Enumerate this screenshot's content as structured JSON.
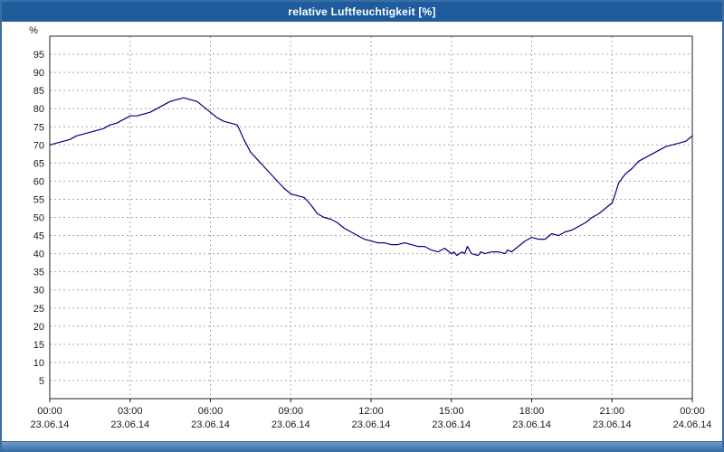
{
  "window": {
    "title": "relative Luftfeuchtigkeit [%]"
  },
  "colors": {
    "titlebar": "#1e5c9e",
    "window_border": "#3a6ea5",
    "plot_border": "#202020",
    "grid": "#a8a8a8",
    "line": "#000080",
    "label_text": "#1a1a1a"
  },
  "chart_data": {
    "type": "line",
    "title": "relative Luftfeuchtigkeit [%]",
    "xlabel": "",
    "ylabel": "%",
    "ylim": [
      0,
      100
    ],
    "xlim_hours": [
      0,
      24
    ],
    "grid": true,
    "legend_position": "none",
    "y_ticks": [
      5,
      10,
      15,
      20,
      25,
      30,
      35,
      40,
      45,
      50,
      55,
      60,
      65,
      70,
      75,
      80,
      85,
      90,
      95
    ],
    "x_ticks": [
      {
        "hour": 0,
        "time": "00:00",
        "date": "23.06.14"
      },
      {
        "hour": 3,
        "time": "03:00",
        "date": "23.06.14"
      },
      {
        "hour": 6,
        "time": "06:00",
        "date": "23.06.14"
      },
      {
        "hour": 9,
        "time": "09:00",
        "date": "23.06.14"
      },
      {
        "hour": 12,
        "time": "12:00",
        "date": "23.06.14"
      },
      {
        "hour": 15,
        "time": "15:00",
        "date": "23.06.14"
      },
      {
        "hour": 18,
        "time": "18:00",
        "date": "23.06.14"
      },
      {
        "hour": 21,
        "time": "21:00",
        "date": "23.06.14"
      },
      {
        "hour": 24,
        "time": "00:00",
        "date": "24.06.14"
      }
    ],
    "series": [
      {
        "name": "relative Luftfeuchtigkeit [%]",
        "x_hours": [
          0,
          0.25,
          0.5,
          0.75,
          1,
          1.25,
          1.5,
          1.75,
          2,
          2.25,
          2.5,
          2.75,
          3,
          3.25,
          3.5,
          3.75,
          4,
          4.25,
          4.5,
          4.75,
          5,
          5.25,
          5.5,
          5.75,
          6,
          6.25,
          6.5,
          6.75,
          7,
          7.1,
          7.25,
          7.5,
          7.75,
          8,
          8.25,
          8.5,
          8.75,
          9,
          9.25,
          9.5,
          9.75,
          10,
          10.25,
          10.5,
          10.75,
          11,
          11.25,
          11.5,
          11.75,
          12,
          12.25,
          12.5,
          12.75,
          13,
          13.25,
          13.5,
          13.75,
          14,
          14.25,
          14.5,
          14.75,
          15,
          15.1,
          15.2,
          15.4,
          15.5,
          15.6,
          15.75,
          16,
          16.1,
          16.25,
          16.5,
          16.75,
          17,
          17.1,
          17.25,
          17.5,
          17.75,
          18,
          18.25,
          18.5,
          18.75,
          19,
          19.25,
          19.5,
          19.75,
          20,
          20.25,
          20.5,
          20.75,
          21,
          21.1,
          21.25,
          21.5,
          21.75,
          22,
          22.25,
          22.5,
          22.75,
          23,
          23.25,
          23.5,
          23.75,
          24
        ],
        "values": [
          70,
          70.5,
          71,
          71.5,
          72.5,
          73,
          73.5,
          74,
          74.5,
          75.5,
          76,
          77,
          78,
          78,
          78.5,
          79,
          80,
          81,
          82,
          82.5,
          83,
          82.5,
          82,
          80.5,
          79,
          77.5,
          76.5,
          76,
          75.5,
          74,
          71.5,
          68,
          66,
          64,
          62,
          60,
          58,
          56.5,
          56,
          55.5,
          53.5,
          51,
          50,
          49.5,
          48.5,
          47,
          46,
          45,
          44,
          43.5,
          43,
          43,
          42.5,
          42.5,
          43,
          42.5,
          42,
          42,
          41,
          40.5,
          41.5,
          40,
          40.5,
          39.5,
          40.5,
          40,
          42,
          40,
          39.5,
          40.5,
          40,
          40.5,
          40.5,
          40,
          41,
          40.5,
          42,
          43.5,
          44.5,
          44,
          44,
          45.5,
          45,
          46,
          46.5,
          47.5,
          48.5,
          50,
          51,
          52.5,
          54,
          56,
          59.5,
          62,
          63.5,
          65.5,
          66.5,
          67.5,
          68.5,
          69.5,
          70,
          70.5,
          71,
          72.5
        ]
      }
    ]
  }
}
